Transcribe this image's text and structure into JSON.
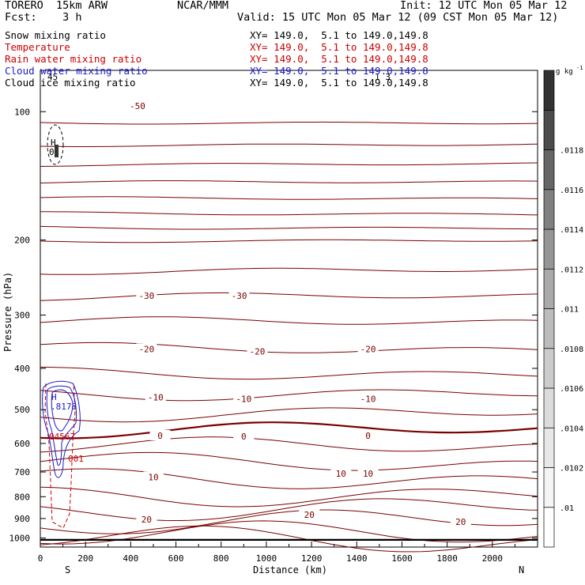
{
  "header": {
    "model": "TORERO  15km ARW",
    "org": "NCAR/MMM",
    "init": "Init: 12 UTC Mon 05 Mar 12",
    "fcst": "Fcst:    3 h",
    "valid": "Valid: 15 UTC Mon 05 Mar 12 (09 CST Mon 05 Mar 12)"
  },
  "fields": [
    {
      "name": "Snow mixing ratio",
      "xy": "XY= 149.0,  5.1 to 149.0,149.8",
      "color": "#000000"
    },
    {
      "name": "Temperature",
      "xy": "XY= 149.0,  5.1 to 149.0,149.8",
      "color": "#cc0000"
    },
    {
      "name": "Rain water mixing ratio",
      "xy": "XY= 149.0,  5.1 to 149.0,149.8",
      "color": "#cc0000"
    },
    {
      "name": "Cloud water mixing ratio",
      "xy": "XY= 149.0,  5.1 to 149.0,149.8",
      "color": "#1a1acc"
    },
    {
      "name": "Cloud ice mixing ratio",
      "xy": "XY= 149.0,  5.1 to 149.0,149.8",
      "color": "#000000"
    }
  ],
  "colorbar": {
    "unit": "g kg",
    "unit_exp": "-1",
    "ticks": [
      ".01",
      ".0102",
      ".0104",
      ".0106",
      ".0108",
      ".011",
      ".0112",
      ".0114",
      ".0116",
      ".0118"
    ],
    "colors": [
      "#ffffff",
      "#f4f4f4",
      "#e8e8e8",
      "#dcdcdc",
      "#cccccc",
      "#bcbcbc",
      "#aaaaaa",
      "#969696",
      "#808080",
      "#666666",
      "#4c4c4c",
      "#333333"
    ]
  },
  "chart_data": {
    "type": "contour",
    "xlabel": "Distance (km)",
    "ylabel": "Pressure (hPa)",
    "x_ticks": [
      0,
      200,
      400,
      600,
      800,
      1000,
      1200,
      1400,
      1600,
      1800,
      2000
    ],
    "y_ticks": [
      100,
      200,
      300,
      400,
      500,
      600,
      700,
      800,
      900,
      1000
    ],
    "xlim": [
      0,
      2200
    ],
    "ylim": [
      1050,
      80
    ],
    "y_scale": "log",
    "endpoints": {
      "left": "S",
      "right": "N"
    },
    "temperature_contours": [
      {
        "value": -50,
        "labels": [
          {
            "text": "-50",
            "x": 430,
            "p": 97
          }
        ]
      },
      {
        "value": -30,
        "labels": [
          {
            "text": "-30",
            "x": 470,
            "p": 270
          },
          {
            "text": "-30",
            "x": 880,
            "p": 270
          }
        ]
      },
      {
        "value": -20,
        "labels": [
          {
            "text": "-20",
            "x": 470,
            "p": 360
          },
          {
            "text": "-20",
            "x": 960,
            "p": 365
          },
          {
            "text": "-20",
            "x": 1450,
            "p": 360
          }
        ]
      },
      {
        "value": -10,
        "labels": [
          {
            "text": "-10",
            "x": 510,
            "p": 468
          },
          {
            "text": "-10",
            "x": 900,
            "p": 472
          },
          {
            "text": "-10",
            "x": 1450,
            "p": 472
          }
        ]
      },
      {
        "value": 0,
        "labels": [
          {
            "text": "0",
            "x": 530,
            "p": 575
          },
          {
            "text": "0",
            "x": 900,
            "p": 577
          },
          {
            "text": "0",
            "x": 1450,
            "p": 575
          }
        ]
      },
      {
        "value": 10,
        "labels": [
          {
            "text": "10",
            "x": 500,
            "p": 720
          },
          {
            "text": "10",
            "x": 1330,
            "p": 706
          },
          {
            "text": "10",
            "x": 1450,
            "p": 706
          }
        ]
      },
      {
        "value": 20,
        "labels": [
          {
            "text": "20",
            "x": 470,
            "p": 905
          },
          {
            "text": "20",
            "x": 1190,
            "p": 881
          },
          {
            "text": "20",
            "x": 1860,
            "p": 916
          }
        ]
      }
    ],
    "rain_water_labels": [
      "04567",
      "001"
    ],
    "cloud_water_labels": [
      "H",
      ".8178"
    ],
    "cloud_ice_labels": [
      "H",
      "0",
      "45",
      "1 3"
    ]
  }
}
